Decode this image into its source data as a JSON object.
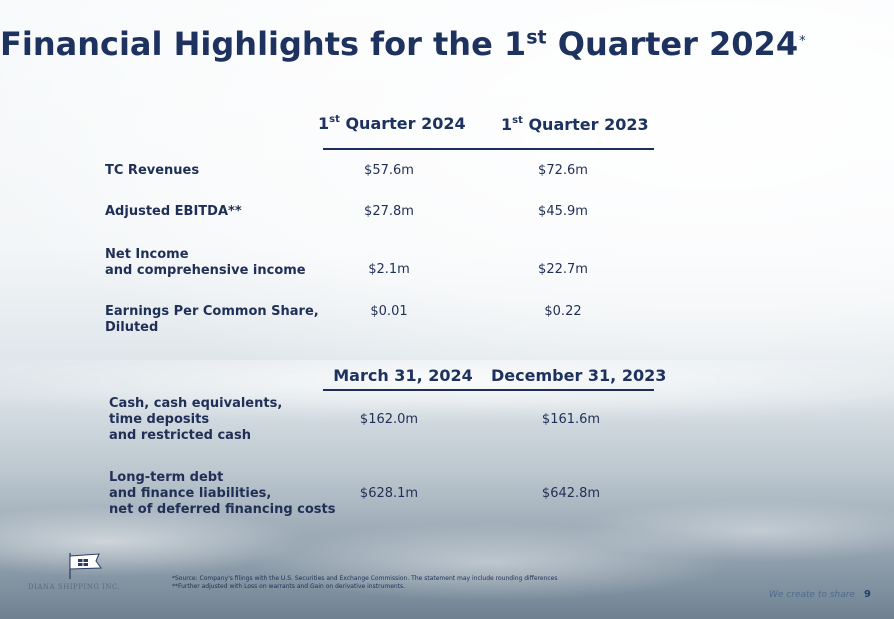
{
  "title": {
    "main": "Financial Highlights for the 1",
    "sup": "st",
    "rest": " Quarter 2024",
    "note": "*"
  },
  "table1": {
    "headers": [
      {
        "prefix": "1",
        "sup": "st",
        "rest": " Quarter 2024"
      },
      {
        "prefix": "1",
        "sup": "st",
        "rest": " Quarter 2023"
      }
    ],
    "rows": [
      {
        "label_line1": "TC Revenues",
        "label_line2": "",
        "values": [
          "$57.6m",
          "$72.6m"
        ]
      },
      {
        "label_line1": "Adjusted EBITDA**",
        "label_line2": "",
        "values": [
          "$27.8m",
          "$45.9m"
        ]
      },
      {
        "label_line1": "Net Income",
        "label_line2": "and comprehensive income",
        "values": [
          "$2.1m",
          "$22.7m"
        ]
      },
      {
        "label_line1": "Earnings Per Common Share,",
        "label_line2": "Diluted",
        "values": [
          "$0.01",
          "$0.22"
        ]
      }
    ]
  },
  "table2": {
    "headers": [
      "March 31, 2024",
      "December 31, 2023"
    ],
    "rows": [
      {
        "label_line1": "Cash, cash equivalents,",
        "label_line2": "time deposits",
        "label_line3": "and restricted cash",
        "values": [
          "$162.0m",
          "$161.6m"
        ]
      },
      {
        "label_line1": "Long-term debt",
        "label_line2": "and finance liabilities,",
        "label_line3": "net of deferred financing costs",
        "values": [
          "$628.1m",
          "$642.8m"
        ]
      }
    ]
  },
  "footer": {
    "company": "DIANA SHIPPING INC.",
    "note1": "*Source: Company's filings with the U.S. Securities and Exchange Commission. The statement may include rounding differences",
    "note2": "**Further adjusted with Loss on warrants and Gain on derivative instruments.",
    "tagline": "We create to share",
    "page_number": "9"
  }
}
